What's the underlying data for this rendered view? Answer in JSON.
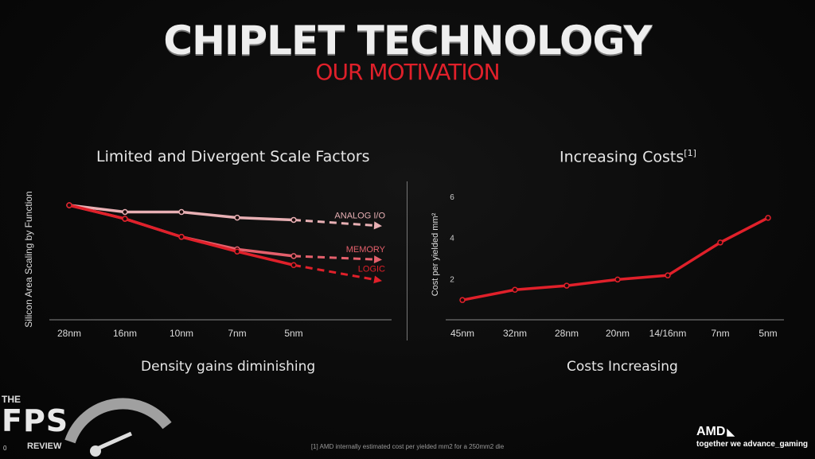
{
  "slide": {
    "title": "CHIPLET TECHNOLOGY",
    "subtitle": "OUR MOTIVATION",
    "left_title": "Limited and Divergent Scale Factors",
    "left_caption": "Density gains diminishing",
    "right_title": "Increasing Costs",
    "right_title_ref": "[1]",
    "right_caption": "Costs Increasing",
    "footnote": "[1] AMD internally estimated cost per yielded mm2 for a 250mm2 die",
    "brand": "AMD",
    "brand_arrow": "◣",
    "tagline": "together we advance_gaming",
    "watermark": {
      "the": "THE",
      "fps": "FPS",
      "review": "REVIEW",
      "num": "0"
    }
  },
  "chart_data": [
    {
      "type": "line",
      "title": "Limited and Divergent Scale Factors",
      "ylabel": "Silicon Area Scaling by Function",
      "xlabel": "Density gains diminishing",
      "categories": [
        "28nm",
        "16nm",
        "10nm",
        "7nm",
        "5nm"
      ],
      "ylim": [
        0,
        1
      ],
      "series": [
        {
          "name": "ANALOG I/O",
          "color": "#e8b0b4",
          "values": [
            1.0,
            0.94,
            0.94,
            0.89,
            0.87
          ],
          "projected_to": 0.82
        },
        {
          "name": "MEMORY",
          "color": "#e4606c",
          "values": [
            1.0,
            0.88,
            0.72,
            0.61,
            0.55
          ],
          "projected_to": 0.52
        },
        {
          "name": "LOGIC",
          "color": "#e0202a",
          "values": [
            1.0,
            0.88,
            0.72,
            0.59,
            0.47
          ],
          "projected_to": 0.34
        }
      ]
    },
    {
      "type": "line",
      "title": "Increasing Costs",
      "ylabel": "Cost per yielded mm²",
      "xlabel": "Costs Increasing",
      "categories": [
        "45nm",
        "32nm",
        "28nm",
        "20nm",
        "14/16nm",
        "7nm",
        "5nm"
      ],
      "yticks": [
        2,
        4,
        6
      ],
      "ylim": [
        0,
        6.5
      ],
      "series": [
        {
          "color": "#e0202a",
          "values": [
            1.0,
            1.5,
            1.7,
            2.0,
            2.2,
            3.8,
            5.0
          ]
        }
      ]
    }
  ]
}
